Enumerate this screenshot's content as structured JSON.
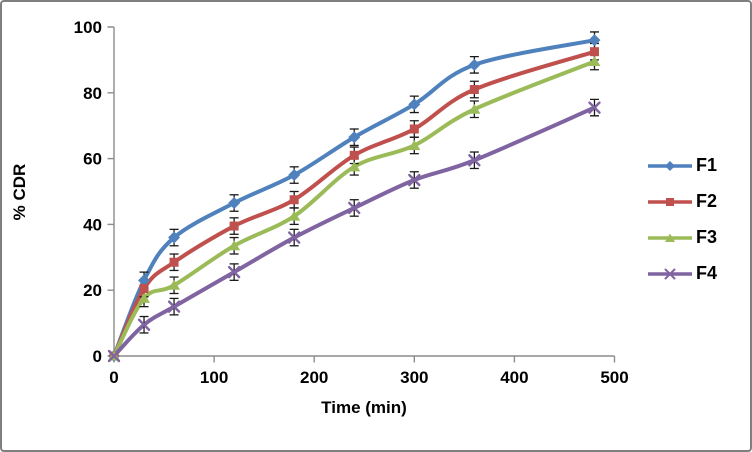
{
  "window": {
    "background": "#ffffff",
    "border_color": "#7f7f7f"
  },
  "chart_data": {
    "type": "line",
    "title": "",
    "xlabel": "Time (min)",
    "ylabel": "% CDR",
    "x": [
      0,
      30,
      60,
      120,
      180,
      240,
      300,
      360,
      480
    ],
    "series": [
      {
        "name": "F1",
        "color": "#4F81BD",
        "marker": "diamond",
        "values": [
          0,
          23,
          36,
          46.5,
          55,
          66.5,
          76.5,
          88.5,
          96
        ]
      },
      {
        "name": "F2",
        "color": "#C0504D",
        "marker": "square",
        "values": [
          0,
          20.5,
          28.5,
          39.5,
          47.5,
          61,
          69,
          81,
          92.5
        ]
      },
      {
        "name": "F3",
        "color": "#9BBB59",
        "marker": "triangle",
        "values": [
          0,
          17.5,
          21.5,
          33.5,
          42.5,
          57.5,
          64,
          75,
          89.5
        ]
      },
      {
        "name": "F4",
        "color": "#8064A2",
        "marker": "x",
        "values": [
          0,
          9.5,
          15,
          25.5,
          36,
          45,
          53.5,
          59.5,
          75.5
        ]
      }
    ],
    "error_bars": {
      "default": 2.5,
      "at_zero": 0.7,
      "color": "#1a1a1a"
    },
    "xlim": [
      0,
      500
    ],
    "ylim": [
      0,
      100
    ],
    "x_ticks": [
      0,
      100,
      200,
      300,
      400,
      500
    ],
    "y_ticks": [
      0,
      20,
      40,
      60,
      80,
      100
    ],
    "grid": false,
    "smooth_lines": true,
    "legend_position": "right",
    "axis_color": "#8c8c8c",
    "tick_label_color": "#000000",
    "tick_font_size": 17
  }
}
